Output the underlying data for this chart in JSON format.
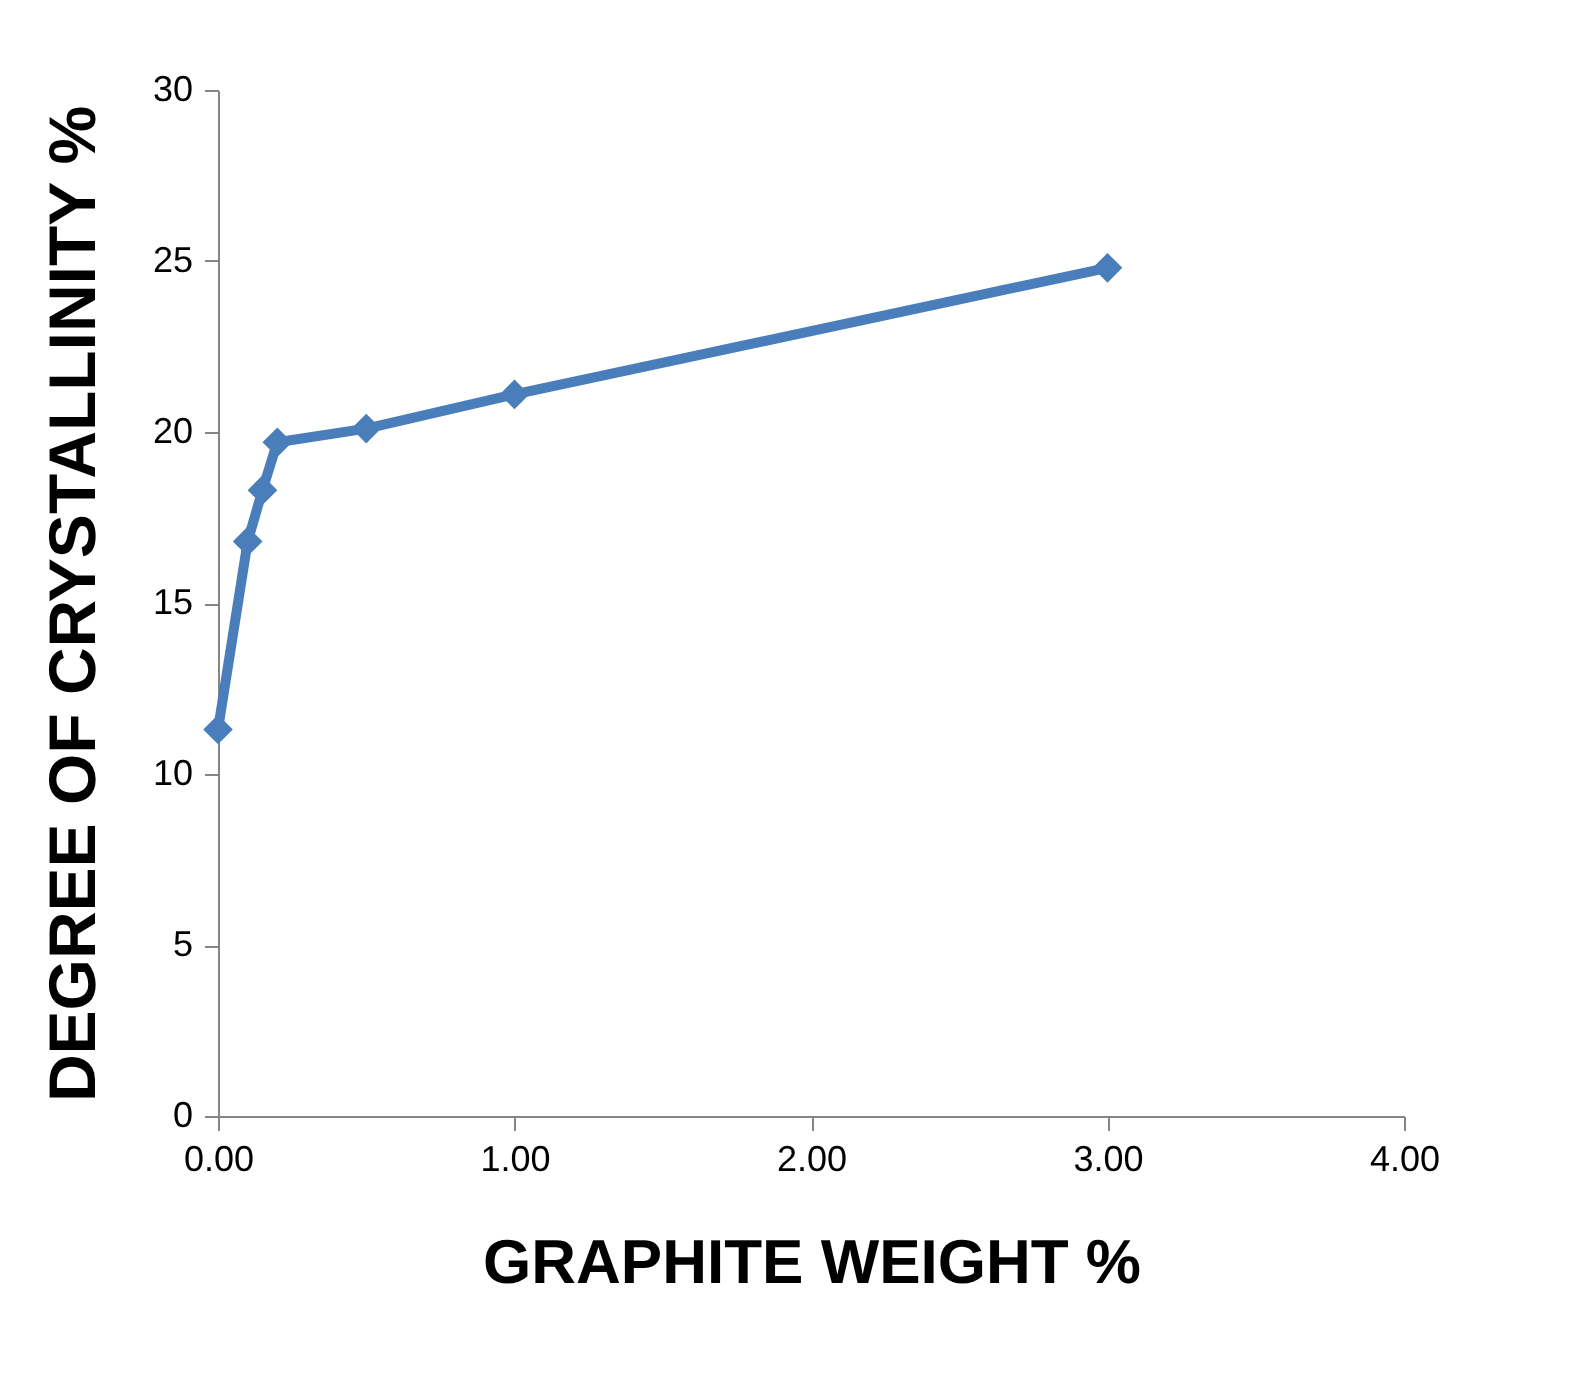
{
  "chart_data": {
    "type": "line",
    "xlabel": "GRAPHITE WEIGHT %",
    "ylabel": "DEGREE OF CRYSTALLINITY %",
    "x": [
      0,
      0.1,
      0.15,
      0.2,
      0.5,
      1.0,
      3.0
    ],
    "series": [
      {
        "color": "#4a7ebb",
        "values": [
          11.3,
          16.8,
          18.3,
          19.7,
          20.1,
          21.1,
          24.8
        ]
      }
    ],
    "xlim": [
      0,
      4
    ],
    "xticks": [
      {
        "value": 0,
        "label": "0.00"
      },
      {
        "value": 1,
        "label": "1.00"
      },
      {
        "value": 2,
        "label": "2.00"
      },
      {
        "value": 3,
        "label": "3.00"
      },
      {
        "value": 4,
        "label": "4.00"
      }
    ],
    "ylim": [
      0,
      30
    ],
    "yticks": [
      0,
      5,
      10,
      15,
      20,
      25,
      30
    ],
    "grid": false,
    "marker": "diamond",
    "line_style": "solid"
  }
}
